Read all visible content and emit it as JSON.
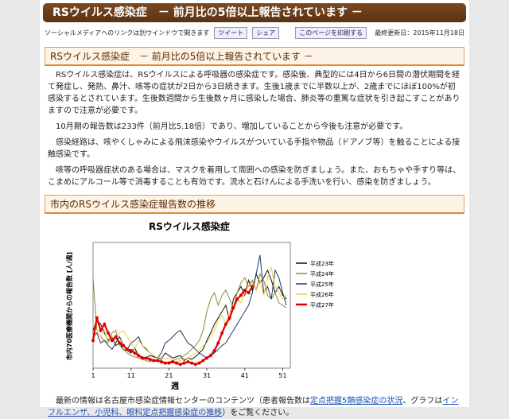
{
  "header": {
    "title": "RSウイルス感染症　－ 前月比の5倍以上報告されています －"
  },
  "toolbar": {
    "note": "ソーシャルメディアへのリンクは別ウインドウで開きます",
    "tweet": "ツイート",
    "share": "シェア",
    "print": "このページを印刷する",
    "updated": "最終更新日：2015年11月18日"
  },
  "section1": {
    "heading": "RSウイルス感染症　－ 前月比の5倍以上報告されています －",
    "paragraphs": [
      "RSウイルス感染症は、RSウイルスによる呼吸器の感染症です。感染後、典型的には4日から6日間の潜伏期間を経て発症し、発熱、鼻汁、咳等の症状が2日から3日続きます。生後1歳までに半数以上が、2歳までにほぼ100%が初感染するとされています。生後数週間から生後数ヶ月に感染した場合、肺炎等の重篤な症状を引き起こすことがありますので注意が必要です。",
      "10月期の報告数は233件（前月比5.18倍）であり、増加していることから今後も注意が必要です。",
      "感染経路は、咳やくしゃみによる飛沫感染やウイルスがついている手指や物品（ドアノブ等）を触ることによる接触感染です。",
      "咳等の呼吸器症状のある場合は、マスクを着用して周囲への感染を防ぎましょう。また、おもちゃや手すり等は、こまめにアルコール等で消毒することも有効です。流水と石けんによる手洗いを行い、感染を防ぎましょう。"
    ]
  },
  "section2": {
    "heading": "市内のRSウイルス感染症報告数の推移",
    "footer": {
      "text1": "最新の情報は名古屋市感染症情報センターのコンテンツ（患者報告数は",
      "link1": "定点把握5類感染症の状況",
      "text2": "、グラフは",
      "link2": "インフルエンザ、小児科、眼科定点把握感染症の推移",
      "text3": "）をご覧ください。"
    }
  },
  "chart": {
    "type": "line",
    "title": "RSウイルス感染症",
    "x_label": "週",
    "y_label": "市内70医療機関からの報告数 [人/週]",
    "x": [
      1,
      2,
      3,
      4,
      5,
      6,
      7,
      8,
      9,
      10,
      11,
      12,
      13,
      14,
      15,
      16,
      17,
      18,
      19,
      20,
      21,
      22,
      23,
      24,
      25,
      26,
      27,
      28,
      29,
      30,
      31,
      32,
      33,
      34,
      35,
      36,
      37,
      38,
      39,
      40,
      41,
      42,
      43,
      44,
      45,
      46,
      47,
      48,
      49,
      50,
      51,
      52
    ],
    "xlim": [
      1,
      53
    ],
    "xticks": [
      1,
      11,
      21,
      31,
      41,
      51
    ],
    "ylim": [
      0,
      100
    ],
    "series": [
      {
        "name": "平成23年",
        "color": "#111111",
        "values": [
          30,
          38,
          35,
          28,
          22,
          25,
          18,
          20,
          15,
          14,
          12,
          16,
          10,
          9,
          8,
          10,
          9,
          8,
          7,
          12,
          10,
          8,
          9,
          10,
          6,
          8,
          7,
          9,
          12,
          15,
          22,
          28,
          35,
          40,
          45,
          50,
          38,
          55,
          60,
          65,
          58,
          70,
          62,
          75,
          68,
          72,
          78,
          70,
          60,
          65,
          58,
          55
        ]
      },
      {
        "name": "平成24年",
        "color": "#8a8a3a",
        "values": [
          72,
          30,
          25,
          22,
          20,
          28,
          30,
          18,
          15,
          12,
          10,
          9,
          8,
          7,
          6,
          5,
          6,
          5,
          6,
          4,
          5,
          6,
          7,
          8,
          10,
          12,
          15,
          18,
          22,
          30,
          45,
          55,
          60,
          50,
          58,
          62,
          55,
          48,
          60,
          68,
          72,
          65,
          70,
          62,
          75,
          70,
          58,
          55,
          60,
          52,
          50,
          48
        ]
      },
      {
        "name": "平成25年",
        "color": "#1f3864",
        "values": [
          25,
          28,
          20,
          22,
          18,
          15,
          20,
          25,
          18,
          15,
          20,
          22,
          25,
          18,
          15,
          12,
          10,
          8,
          12,
          20,
          22,
          25,
          28,
          30,
          25,
          20,
          18,
          15,
          12,
          10,
          8,
          10,
          12,
          15,
          18,
          20,
          25,
          30,
          35,
          40,
          45,
          50,
          60,
          75,
          90,
          60,
          65,
          55,
          78,
          72,
          60,
          50
        ]
      },
      {
        "name": "平成26年",
        "color": "#f0d040",
        "values": [
          35,
          30,
          25,
          30,
          20,
          25,
          22,
          28,
          30,
          25,
          20,
          15,
          22,
          18,
          16,
          12,
          10,
          8,
          9,
          7,
          8,
          6,
          5,
          6,
          7,
          8,
          10,
          12,
          15,
          18,
          20,
          25,
          30,
          38,
          42,
          35,
          45,
          48,
          55,
          52,
          60,
          65,
          68,
          62,
          70,
          58,
          72,
          80,
          65,
          60,
          55,
          58
        ]
      },
      {
        "name": "平成27年",
        "color": "#e00000",
        "values": [
          22,
          40,
          30,
          35,
          28,
          22,
          25,
          20,
          18,
          15,
          14,
          12,
          10,
          8,
          8,
          7,
          6,
          6,
          5,
          4,
          4,
          5,
          4,
          3,
          4,
          5,
          4,
          3,
          4,
          6,
          8,
          10,
          14,
          20,
          28,
          35,
          40,
          48,
          55,
          58,
          62,
          60,
          65,
          null,
          null,
          null,
          null,
          null,
          null,
          null,
          null,
          null
        ]
      }
    ]
  }
}
